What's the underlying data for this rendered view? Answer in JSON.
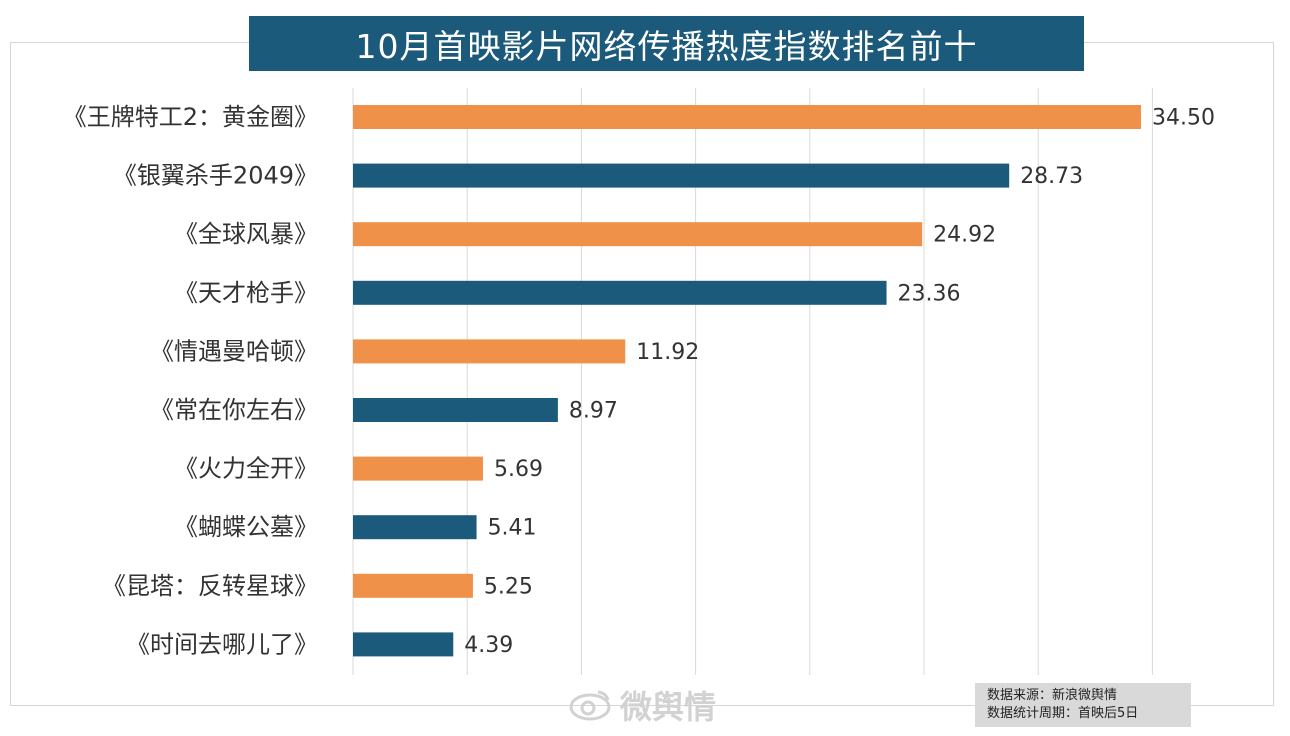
{
  "chart_data": {
    "type": "bar",
    "orientation": "horizontal",
    "title": "10月首映影片网络传播热度指数排名前十",
    "categories": [
      "《王牌特工2：黄金圈》",
      "《银翼杀手2049》",
      "《全球风暴》",
      "《天才枪手》",
      "《情遇曼哈顿》",
      "《常在你左右》",
      "《火力全开》",
      "《蝴蝶公墓》",
      "《昆塔：反转星球》",
      "《时间去哪儿了》"
    ],
    "values": [
      34.5,
      28.73,
      24.92,
      23.36,
      11.92,
      8.97,
      5.69,
      5.41,
      5.25,
      4.39
    ],
    "value_labels": [
      "34.50",
      "28.73",
      "24.92",
      "23.36",
      "11.92",
      "8.97",
      "5.69",
      "5.41",
      "5.25",
      "4.39"
    ],
    "xlim": [
      0,
      35
    ],
    "grid": true,
    "colors": {
      "orange": "#ef9148",
      "blue": "#1c5a7b",
      "gridline": "#d9d9d9"
    }
  },
  "watermark": {
    "text": "微舆情"
  },
  "source": {
    "line1": "数据来源：新浪微舆情",
    "line2": "数据统计周期：首映后5日"
  }
}
